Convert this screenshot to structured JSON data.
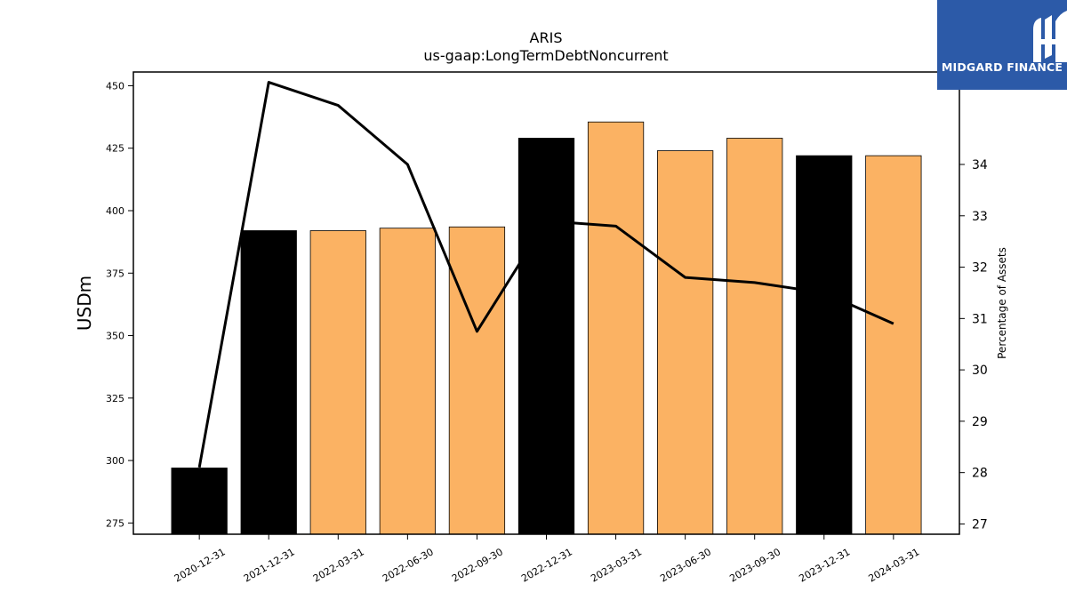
{
  "brand": {
    "name": "MIDGARD FINANCE",
    "color": "#2c5aa8"
  },
  "chart_data": {
    "type": "bar",
    "title": "ARIS",
    "subtitle": "us-gaap:LongTermDebtNoncurrent",
    "ylabel": "USDm",
    "y2label": "Percentage of Assets",
    "categories": [
      "2020-12-31",
      "2021-12-31",
      "2022-03-31",
      "2022-06-30",
      "2022-09-30",
      "2022-12-31",
      "2023-03-31",
      "2023-06-30",
      "2023-09-30",
      "2023-12-31",
      "2024-03-31"
    ],
    "series": [
      {
        "values": [
          297,
          392,
          392,
          393,
          393.5,
          429,
          435.5,
          424,
          429,
          422,
          422
        ],
        "colors": [
          "#000000",
          "#000000",
          "#fbb263",
          "#fbb263",
          "#fbb263",
          "#000000",
          "#fbb263",
          "#fbb263",
          "#fbb263",
          "#000000",
          "#fbb263"
        ]
      },
      {
        "axis": "right",
        "type": "line",
        "color": "#000000",
        "values": [
          28.1,
          35.6,
          35.15,
          34.0,
          30.75,
          32.9,
          32.8,
          31.8,
          31.7,
          31.5,
          30.9
        ]
      }
    ],
    "ylim": [
      270.5,
      455.5
    ],
    "y2lim": [
      26.8,
      35.8
    ],
    "yticks": [
      275,
      300,
      325,
      350,
      375,
      400,
      425,
      450
    ],
    "y2ticks": [
      27,
      28,
      29,
      30,
      31,
      32,
      33,
      34
    ],
    "grid": false
  }
}
